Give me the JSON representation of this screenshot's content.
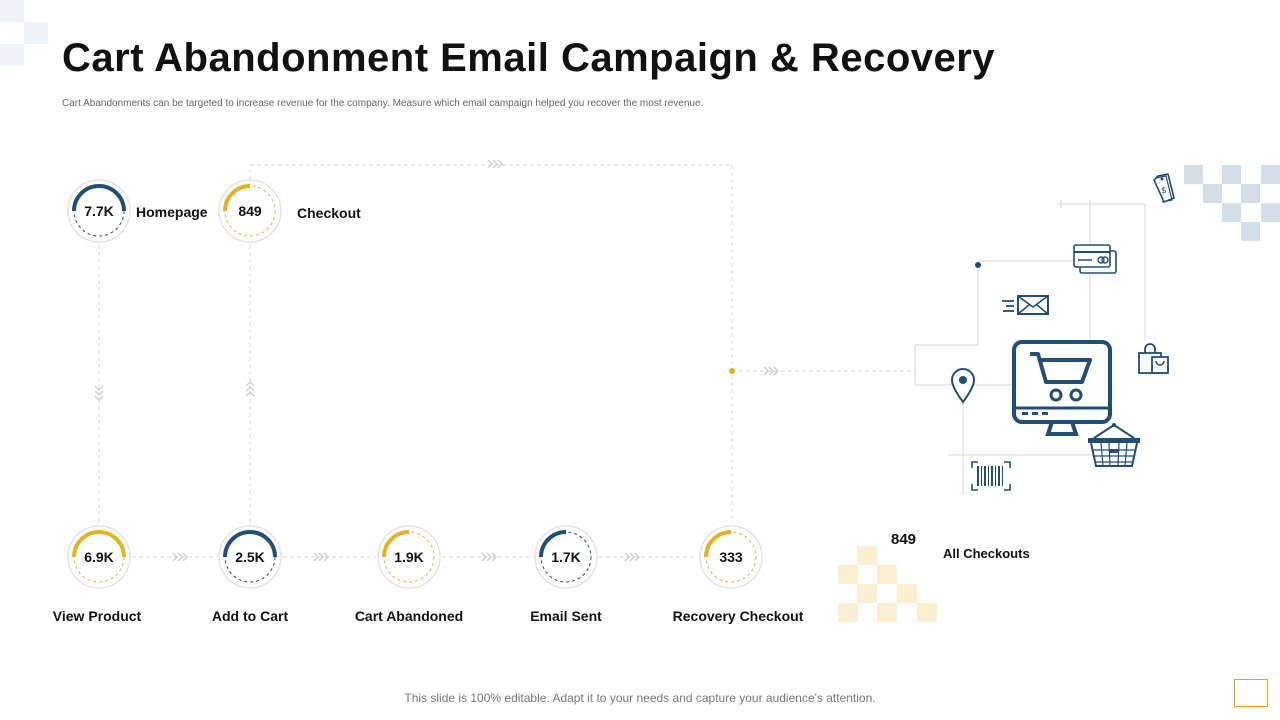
{
  "header": {
    "title": "Cart Abandonment Email Campaign & Recovery",
    "subtitle": "Cart Abandonments can be targeted to increase revenue for the company. Measure which email campaign  helped you recover the most revenue."
  },
  "funnel": {
    "homepage": {
      "value": "7.7K",
      "label": "Homepage",
      "ring": "blue"
    },
    "checkout": {
      "value": "849",
      "label": "Checkout",
      "ring": "yellow"
    },
    "view_product": {
      "value": "6.9K",
      "label": "View Product",
      "ring": "yellow"
    },
    "add_to_cart": {
      "value": "2.5K",
      "label": "Add to Cart",
      "ring": "blue"
    },
    "cart_abandoned": {
      "value": "1.9K",
      "label": "Cart Abandoned",
      "ring": "yellow"
    },
    "email_sent": {
      "value": "1.7K",
      "label": "Email Sent",
      "ring": "blue"
    },
    "recovery_checkout": {
      "value": "333",
      "label": "Recovery Checkout",
      "ring": "yellow"
    }
  },
  "all_checkouts": {
    "value": "849",
    "label": "All Checkouts"
  },
  "footer": {
    "text": "This slide is 100% editable. Adapt it to your needs and capture your audience's attention."
  },
  "icons": [
    "shopping-cart-monitor-icon",
    "credit-card-icon",
    "email-icon",
    "price-tag-icon",
    "shopping-bag-icon",
    "location-pin-icon",
    "shopping-basket-icon",
    "barcode-icon"
  ],
  "colors": {
    "blue": "#1f4e79",
    "yellow": "#e8b11c",
    "decor_blue": "#d3dde7",
    "decor_yellow": "#fbefcf",
    "line": "#d6d6d6"
  }
}
